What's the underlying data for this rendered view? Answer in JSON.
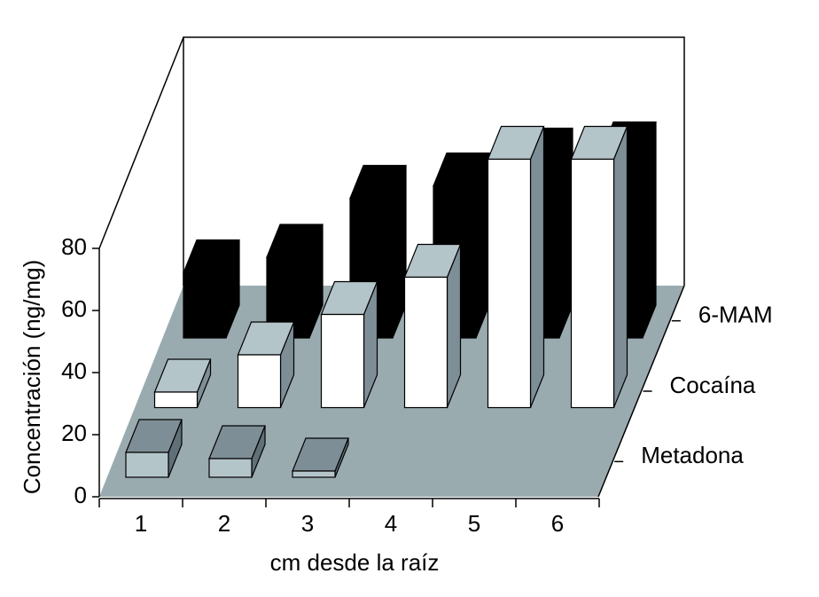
{
  "chart_data": {
    "type": "bar3d",
    "x_label": "cm desde la raíz",
    "y_label": "Concentración (ng/mg)",
    "categories": [
      "1",
      "2",
      "3",
      "4",
      "5",
      "6"
    ],
    "series": [
      {
        "name": "Metadona",
        "color": "#b4c5ca",
        "top_color": "#7d8e96",
        "side_color": "#5f7078",
        "values": [
          8,
          6,
          2,
          null,
          null,
          null
        ]
      },
      {
        "name": "Cocaína",
        "color": "#ffffff",
        "top_color": "#b4c5ca",
        "side_color": "#7d8e96",
        "values": [
          5,
          17,
          30,
          42,
          80,
          80
        ]
      },
      {
        "name": "6-MAM",
        "color": "#000000",
        "top_color": "#000000",
        "side_color": "#000000",
        "values": [
          21,
          26,
          45,
          49,
          57,
          59
        ]
      }
    ],
    "ylim": [
      0,
      80
    ],
    "yticks": [
      0,
      20,
      40,
      60,
      80
    ],
    "floor_color": "#9aabb0"
  }
}
